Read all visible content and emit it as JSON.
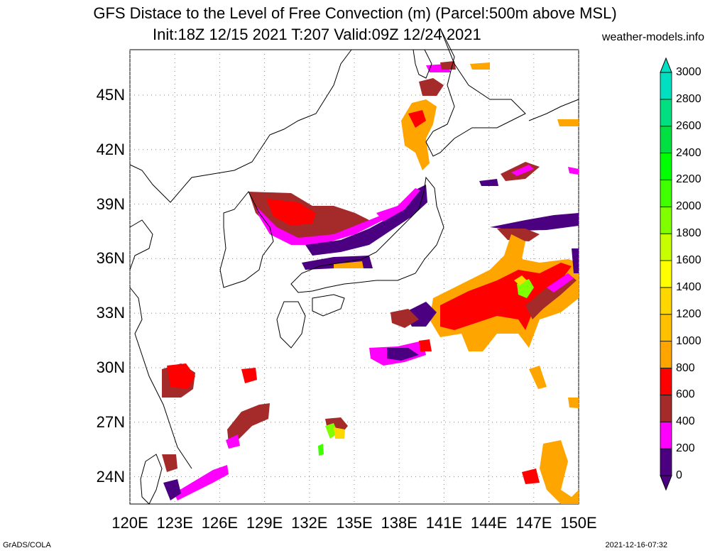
{
  "title": {
    "line1": "GFS Distace to the Level of Free Convection (m) (Parcel:500m above MSL)",
    "line2": "Init:18Z 12/15 2021 T:207 Valid:09Z 12/24 2021",
    "site": "weather-models.info"
  },
  "map_extent": {
    "lon_min": 120,
    "lon_max": 150,
    "lat_min": 22.5,
    "lat_max": 47.5
  },
  "lat_labels": [
    {
      "lat": 45,
      "label": "45N"
    },
    {
      "lat": 42,
      "label": "42N"
    },
    {
      "lat": 39,
      "label": "39N"
    },
    {
      "lat": 36,
      "label": "36N"
    },
    {
      "lat": 33,
      "label": "33N"
    },
    {
      "lat": 30,
      "label": "30N"
    },
    {
      "lat": 27,
      "label": "27N"
    },
    {
      "lat": 24,
      "label": "24N"
    }
  ],
  "lon_labels": [
    {
      "lon": 120,
      "label": "120E"
    },
    {
      "lon": 123,
      "label": "123E"
    },
    {
      "lon": 126,
      "label": "126E"
    },
    {
      "lon": 129,
      "label": "129E"
    },
    {
      "lon": 132,
      "label": "132E"
    },
    {
      "lon": 135,
      "label": "135E"
    },
    {
      "lon": 138,
      "label": "138E"
    },
    {
      "lon": 141,
      "label": "141E"
    },
    {
      "lon": 144,
      "label": "144E"
    },
    {
      "lon": 147,
      "label": "147E"
    },
    {
      "lon": 150,
      "label": "150E"
    }
  ],
  "colorbar": {
    "levels": [
      "0",
      "200",
      "400",
      "600",
      "800",
      "1000",
      "1200",
      "1400",
      "1600",
      "1800",
      "2000",
      "2200",
      "2400",
      "2600",
      "2800",
      "3000"
    ],
    "colors": [
      "#4b0082",
      "#ff00ff",
      "#a52a2a",
      "#ff0000",
      "#ffa500",
      "#ffc000",
      "#ffd700",
      "#ffff00",
      "#c8ff00",
      "#80ff00",
      "#40ff00",
      "#00ff00",
      "#00e040",
      "#00e080",
      "#00e0c0",
      "#00ffe0"
    ],
    "top_arrow_color": "#00e0c0",
    "bottom_arrow_color": "#4b0082"
  },
  "footer": {
    "left": "GrADS/COLA",
    "right": "2021-12-16-07:32"
  }
}
